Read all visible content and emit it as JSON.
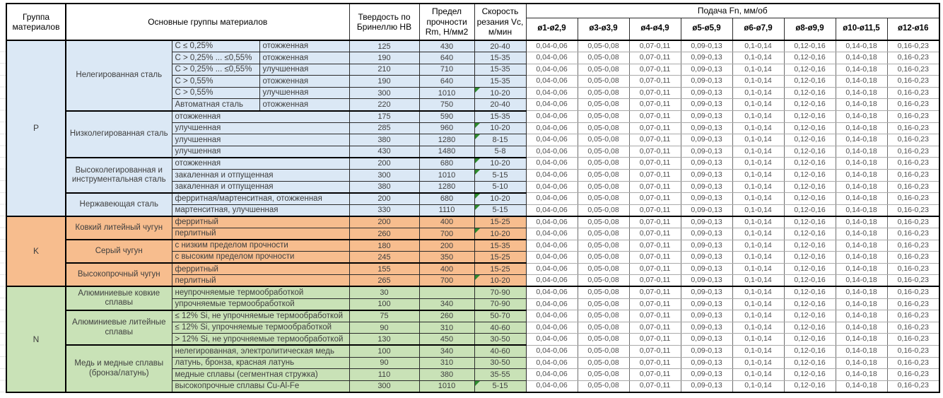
{
  "header": {
    "group": "Группа материалов",
    "main_groups": "Основные группы материалов",
    "hardness": "Твердость по Бринеллю HB",
    "strength": "Предел прочности Rm, Н/мм2",
    "speed": "Скорость резания Vc, м/мин",
    "feed_title": "Подача Fn, мм/об",
    "feed_cols": [
      "ø1-ø2,9",
      "ø3-ø3,9",
      "ø4-ø4,9",
      "ø5-ø5,9",
      "ø6-ø7,9",
      "ø8-ø9,9",
      "ø10-ø11,5",
      "ø12-ø16"
    ]
  },
  "feed_values": [
    "0,04-0,06",
    "0,05-0,08",
    "0,07-0,11",
    "0,09-0,13",
    "0,1-0,14",
    "0,12-0,16",
    "0,14-0,18",
    "0,16-0,23"
  ],
  "colors": {
    "P": "#dbe8f5",
    "K": "#f7bd8e",
    "N": "#c9e2b7",
    "note_flag": "#2e8b2e"
  },
  "groups": [
    {
      "code": "P",
      "color": "#dbe8f5",
      "subgroups": [
        {
          "name": "Нелегированная сталь",
          "rows": [
            {
              "d1": "C ≤ 0,25%",
              "d2": "отожженная",
              "hb": "125",
              "rm": "430",
              "vc": "20-40",
              "flag": false
            },
            {
              "d1": "C > 0,25% ... ≤0,55%",
              "d2": "отожженная",
              "hb": "190",
              "rm": "640",
              "vc": "15-35",
              "flag": false
            },
            {
              "d1": "C > 0,25% ... ≤0,55%",
              "d2": "улучшенная",
              "hb": "210",
              "rm": "710",
              "vc": "15-35",
              "flag": false
            },
            {
              "d1": "C > 0,55%",
              "d2": "отожженная",
              "hb": "190",
              "rm": "640",
              "vc": "15-35",
              "flag": false
            },
            {
              "d1": "C > 0,55%",
              "d2": "улучшенная",
              "hb": "300",
              "rm": "1010",
              "vc": "10-20",
              "flag": true
            },
            {
              "d1": "Автоматная сталь",
              "d2": "отожженная",
              "hb": "220",
              "rm": "750",
              "vc": "20-40",
              "flag": false
            }
          ]
        },
        {
          "name": "Низколегированная сталь",
          "rows": [
            {
              "d": "отожженная",
              "hb": "175",
              "rm": "590",
              "vc": "15-35",
              "flag": false
            },
            {
              "d": "улучшенная",
              "hb": "285",
              "rm": "960",
              "vc": "10-20",
              "flag": true
            },
            {
              "d": "улучшенная",
              "hb": "380",
              "rm": "1280",
              "vc": "8-15",
              "flag": true
            },
            {
              "d": "улучшенная",
              "hb": "430",
              "rm": "1480",
              "vc": "5-8",
              "flag": false
            }
          ]
        },
        {
          "name": "Высоколегированная и инструментальная сталь",
          "rows": [
            {
              "d": "отожженная",
              "hb": "200",
              "rm": "680",
              "vc": "10-20",
              "flag": true
            },
            {
              "d": "закаленная и отпущенная",
              "hb": "300",
              "rm": "1010",
              "vc": "5-15",
              "flag": true
            },
            {
              "d": "закаленная и отпущенная",
              "hb": "380",
              "rm": "1280",
              "vc": "5-10",
              "flag": false
            }
          ]
        },
        {
          "name": "Нержавеющая сталь",
          "rows": [
            {
              "d": "ферритная/мартенситная, отожженная",
              "hb": "200",
              "rm": "680",
              "vc": "10-20",
              "flag": true
            },
            {
              "d": "мартенситная, улучшенная",
              "hb": "330",
              "rm": "1110",
              "vc": "5-15",
              "flag": true
            }
          ]
        }
      ]
    },
    {
      "code": "K",
      "color": "#f7bd8e",
      "subgroups": [
        {
          "name": "Ковкий литейный чугун",
          "rows": [
            {
              "d": "ферритный",
              "hb": "200",
              "rm": "400",
              "vc": "15-25",
              "flag": false
            },
            {
              "d": "перлитный",
              "hb": "260",
              "rm": "700",
              "vc": "10-20",
              "flag": true
            }
          ]
        },
        {
          "name": "Серый чугун",
          "rows": [
            {
              "d": "с низким пределом прочности",
              "hb": "180",
              "rm": "200",
              "vc": "15-35",
              "flag": false
            },
            {
              "d": "с высоким пределом прочности",
              "hb": "245",
              "rm": "350",
              "vc": "15-25",
              "flag": false
            }
          ]
        },
        {
          "name": "Высокопрочный чугун",
          "rows": [
            {
              "d": "ферритный",
              "hb": "155",
              "rm": "400",
              "vc": "15-25",
              "flag": false
            },
            {
              "d": "перлитный",
              "hb": "265",
              "rm": "700",
              "vc": "10-20",
              "flag": true
            }
          ]
        }
      ]
    },
    {
      "code": "N",
      "color": "#c9e2b7",
      "subgroups": [
        {
          "name": "Алюминиевые ковкие сплавы",
          "rows": [
            {
              "d": "неупрочняемые термообработкой",
              "hb": "30",
              "rm": "",
              "vc": "70-90",
              "flag": false
            },
            {
              "d": "упрочняемые термообработкой",
              "hb": "100",
              "rm": "340",
              "vc": "70-90",
              "flag": false
            }
          ]
        },
        {
          "name": "Алюминиевые литейные сплавы",
          "rows": [
            {
              "d": "≤ 12% Si, не упрочняемые термообработкой",
              "hb": "75",
              "rm": "260",
              "vc": "50-70",
              "flag": false
            },
            {
              "d": "≤ 12% Si, упрочняемые термообработкой",
              "hb": "90",
              "rm": "310",
              "vc": "40-60",
              "flag": false
            },
            {
              "d": "> 12% Si, не упрочняемые термообработкой",
              "hb": "130",
              "rm": "450",
              "vc": "30-50",
              "flag": false
            }
          ]
        },
        {
          "name": "Медь и медные сплавы (бронза/латунь)",
          "rows": [
            {
              "d": "нелегированная, электролитическая медь",
              "hb": "100",
              "rm": "340",
              "vc": "40-60",
              "flag": false
            },
            {
              "d": "латунь, бронза, красная латунь",
              "hb": "90",
              "rm": "310",
              "vc": "30-50",
              "flag": false
            },
            {
              "d": "медные сплавы (сегментная стружка)",
              "hb": "110",
              "rm": "380",
              "vc": "35-55",
              "flag": false
            },
            {
              "d": "высокопрочные сплавы Cu-Al-Fe",
              "hb": "300",
              "rm": "1010",
              "vc": "5-15",
              "flag": true
            }
          ]
        }
      ]
    }
  ]
}
